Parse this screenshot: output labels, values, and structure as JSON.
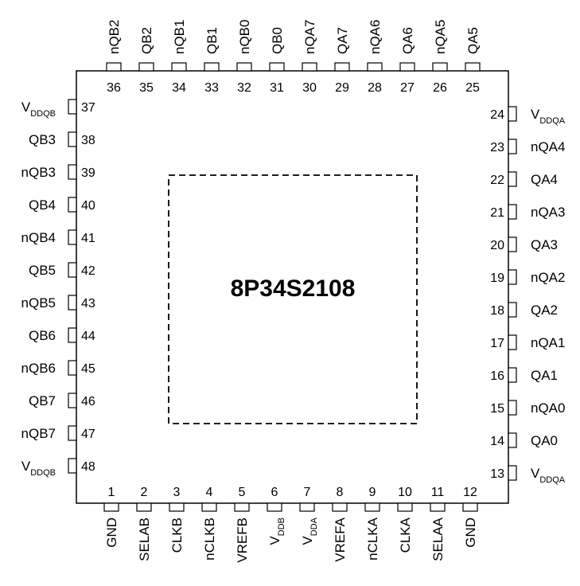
{
  "package": {
    "part_number": "8P34S2108"
  },
  "pins": {
    "bottom": [
      {
        "num": "1",
        "name": "GND"
      },
      {
        "num": "2",
        "name": "SELAB"
      },
      {
        "num": "3",
        "name": "CLKB"
      },
      {
        "num": "4",
        "name": "nCLKB"
      },
      {
        "num": "5",
        "name": "VREFB"
      },
      {
        "num": "6",
        "name": "V",
        "sub": "DDB"
      },
      {
        "num": "7",
        "name": "V",
        "sub": "DDA"
      },
      {
        "num": "8",
        "name": "VREFA"
      },
      {
        "num": "9",
        "name": "nCLKA"
      },
      {
        "num": "10",
        "name": "CLKA"
      },
      {
        "num": "11",
        "name": "SELAA"
      },
      {
        "num": "12",
        "name": "GND"
      }
    ],
    "right": [
      {
        "num": "13",
        "name": "V",
        "sub": "DDQA"
      },
      {
        "num": "14",
        "name": "QA0"
      },
      {
        "num": "15",
        "name": "nQA0"
      },
      {
        "num": "16",
        "name": "QA1"
      },
      {
        "num": "17",
        "name": "nQA1"
      },
      {
        "num": "18",
        "name": "QA2"
      },
      {
        "num": "19",
        "name": "nQA2"
      },
      {
        "num": "20",
        "name": "QA3"
      },
      {
        "num": "21",
        "name": "nQA3"
      },
      {
        "num": "22",
        "name": "QA4"
      },
      {
        "num": "23",
        "name": "nQA4"
      },
      {
        "num": "24",
        "name": "V",
        "sub": "DDQA"
      }
    ],
    "top": [
      {
        "num": "25",
        "name": "QA5"
      },
      {
        "num": "26",
        "name": "nQA5"
      },
      {
        "num": "27",
        "name": "QA6"
      },
      {
        "num": "28",
        "name": "nQA6"
      },
      {
        "num": "29",
        "name": "QA7"
      },
      {
        "num": "30",
        "name": "nQA7"
      },
      {
        "num": "31",
        "name": "QB0"
      },
      {
        "num": "32",
        "name": "nQB0"
      },
      {
        "num": "33",
        "name": "QB1"
      },
      {
        "num": "34",
        "name": "nQB1"
      },
      {
        "num": "35",
        "name": "QB2"
      },
      {
        "num": "36",
        "name": "nQB2"
      }
    ],
    "left": [
      {
        "num": "37",
        "name": "V",
        "sub": "DDQB"
      },
      {
        "num": "38",
        "name": "QB3"
      },
      {
        "num": "39",
        "name": "nQB3"
      },
      {
        "num": "40",
        "name": "QB4"
      },
      {
        "num": "41",
        "name": "nQB4"
      },
      {
        "num": "42",
        "name": "QB5"
      },
      {
        "num": "43",
        "name": "nQB5"
      },
      {
        "num": "44",
        "name": "QB6"
      },
      {
        "num": "45",
        "name": "nQB6"
      },
      {
        "num": "46",
        "name": "QB7"
      },
      {
        "num": "47",
        "name": "nQB7"
      },
      {
        "num": "48",
        "name": "V",
        "sub": "DDQB"
      }
    ]
  }
}
